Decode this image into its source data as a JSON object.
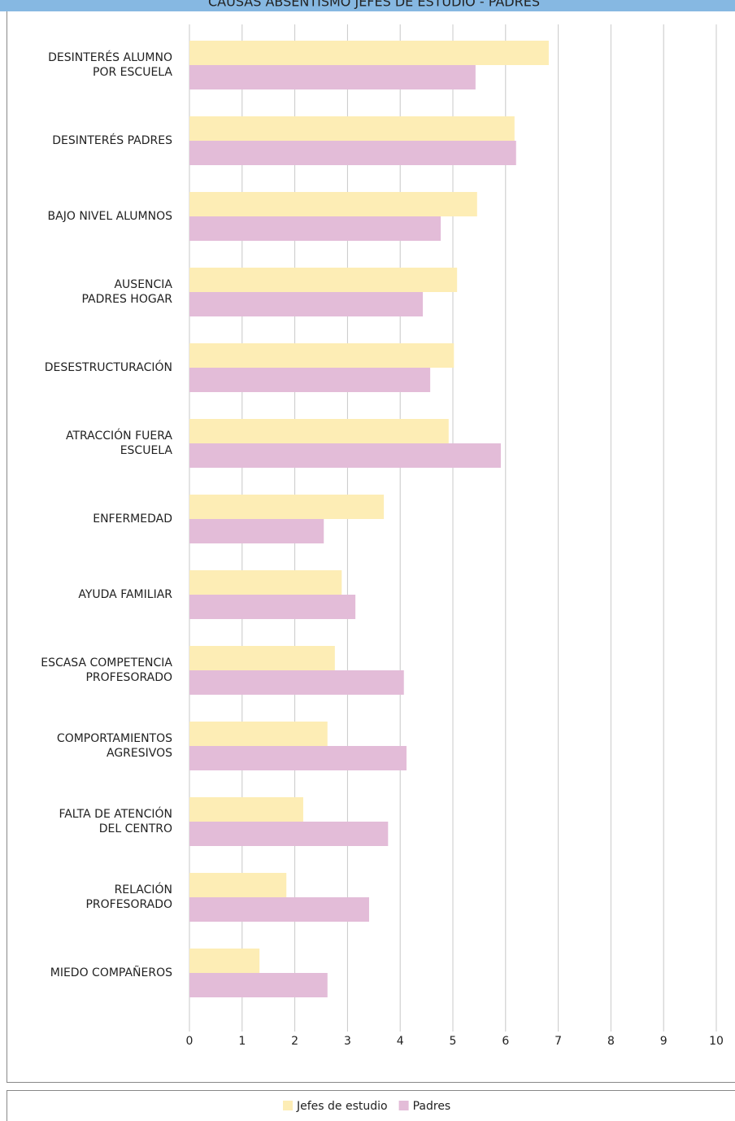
{
  "chart_data": {
    "type": "hbar",
    "title": "CAUSAS ABSENTISMO JEFES DE ESTUDIO - PADRES",
    "categories": [
      [
        "DESINTERÉS ALUMNO",
        "POR ESCUELA"
      ],
      [
        "DESINTERÉS PADRES"
      ],
      [
        "BAJO NIVEL ALUMNOS"
      ],
      [
        "AUSENCIA",
        "PADRES HOGAR"
      ],
      [
        "DESESTRUCTURACIÓN"
      ],
      [
        "ATRACCIÓN FUERA",
        "ESCUELA"
      ],
      [
        "ENFERMEDAD"
      ],
      [
        "AYUDA FAMILIAR"
      ],
      [
        "ESCASA COMPETENCIA",
        "PROFESORADO"
      ],
      [
        "COMPORTAMIENTOS",
        "AGRESIVOS"
      ],
      [
        "FALTA DE ATENCIÓN",
        "DEL CENTRO"
      ],
      [
        "RELACIÓN",
        "PROFESORADO"
      ],
      [
        "MIEDO COMPAÑEROS"
      ]
    ],
    "series": [
      {
        "name": "Jefes de estudio",
        "color": "#fdedb5",
        "values": [
          6.82,
          6.17,
          5.46,
          5.08,
          5.02,
          4.92,
          3.69,
          2.89,
          2.76,
          2.62,
          2.16,
          1.84,
          1.33
        ]
      },
      {
        "name": "Padres",
        "color": "#e3bcd8",
        "values": [
          5.43,
          6.2,
          4.77,
          4.43,
          4.57,
          5.91,
          2.55,
          3.15,
          4.07,
          4.12,
          3.77,
          3.41,
          2.62
        ]
      }
    ],
    "xlim": [
      0,
      10
    ],
    "xticks": [
      0,
      1,
      2,
      3,
      4,
      5,
      6,
      7,
      8,
      9,
      10
    ],
    "grid": true
  }
}
